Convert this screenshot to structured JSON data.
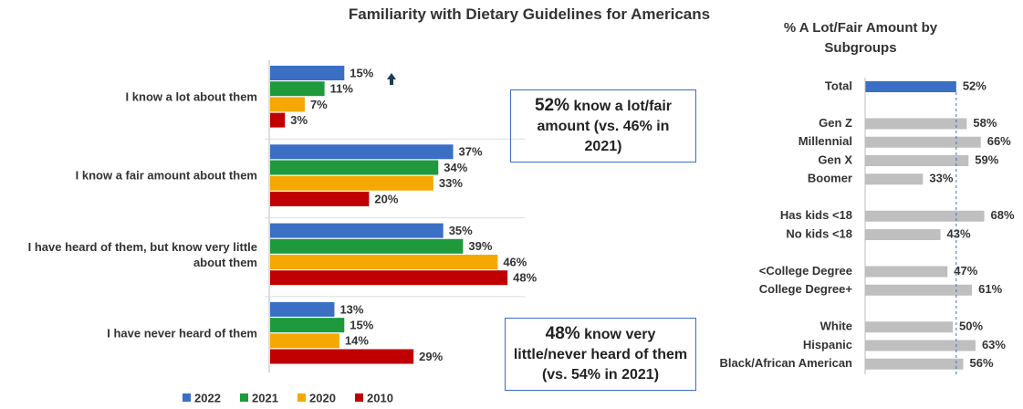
{
  "chart_data": [
    {
      "type": "bar",
      "orientation": "horizontal",
      "title": "Familiarity with Dietary Guidelines for Americans",
      "categories": [
        "I know a lot about them",
        "I know a fair amount about them",
        "I have heard of them, but know very little about them",
        "I have never heard of them"
      ],
      "series": [
        {
          "name": "2022",
          "color": "#3a6fc4",
          "values": [
            15,
            37,
            35,
            13
          ],
          "value_labels": [
            "15%",
            "37%",
            "35%",
            "13%"
          ]
        },
        {
          "name": "2021",
          "color": "#1e9a3c",
          "values": [
            11,
            34,
            39,
            15
          ],
          "value_labels": [
            "11%",
            "34%",
            "39%",
            "15%"
          ]
        },
        {
          "name": "2020",
          "color": "#f5a800",
          "values": [
            7,
            33,
            46,
            14
          ],
          "value_labels": [
            "7%",
            "33%",
            "46%",
            "14%"
          ]
        },
        {
          "name": "2010",
          "color": "#c00000",
          "values": [
            3,
            20,
            48,
            29
          ],
          "value_labels": [
            "3%",
            "20%",
            "48%",
            "29%"
          ]
        }
      ],
      "xlim": [
        0,
        50
      ],
      "legend": "bottom",
      "annotations": [
        {
          "highlight": "52%",
          "text": "know a lot/fair amount (vs. 46% in 2021)"
        },
        {
          "highlight": "48%",
          "text": "know very little/never heard of them (vs. 54% in 2021)"
        }
      ]
    },
    {
      "type": "bar",
      "orientation": "horizontal",
      "title": "% A Lot/Fair Amount by Subgroups",
      "categories": [
        "Total",
        null,
        "Gen Z",
        "Millennial",
        "Gen X",
        "Boomer",
        null,
        "Has kids <18",
        "No kids <18",
        null,
        "<College Degree",
        "College Degree+",
        null,
        "White",
        "Hispanic",
        "Black/African American"
      ],
      "values": [
        52,
        null,
        58,
        66,
        59,
        33,
        null,
        68,
        43,
        null,
        47,
        61,
        null,
        50,
        63,
        56
      ],
      "value_labels": [
        "52%",
        null,
        "58%",
        "66%",
        "59%",
        "33%",
        null,
        "68%",
        "43%",
        null,
        "47%",
        "61%",
        null,
        "50%",
        "63%",
        "56%"
      ],
      "colors": [
        "#3a6fc4",
        null,
        "#bfbfbf",
        "#bfbfbf",
        "#bfbfbf",
        "#bfbfbf",
        null,
        "#bfbfbf",
        "#bfbfbf",
        null,
        "#bfbfbf",
        "#bfbfbf",
        null,
        "#bfbfbf",
        "#bfbfbf",
        "#bfbfbf"
      ],
      "xlim": [
        0,
        100
      ]
    }
  ]
}
